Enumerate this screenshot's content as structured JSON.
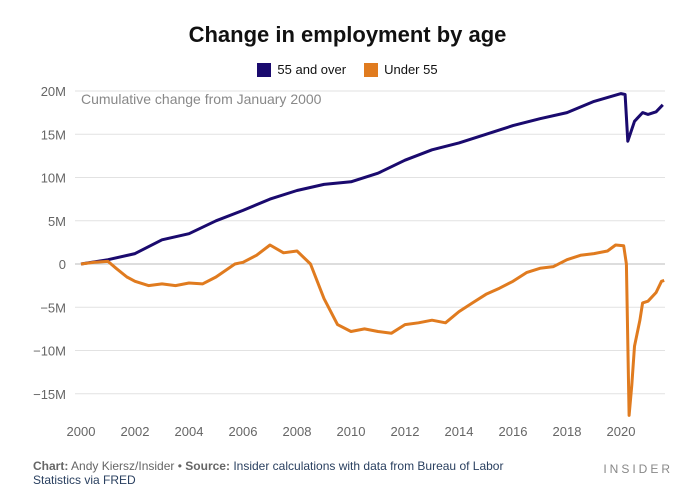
{
  "chart_data": {
    "type": "line",
    "title": "Change in employment by age",
    "annotation": "Cumulative change from January 2000",
    "ylim": [
      -17500000,
      21000000
    ],
    "xlim": [
      2000,
      2021.7
    ],
    "yticks": [
      {
        "v": 20,
        "label": "20M"
      },
      {
        "v": 15,
        "label": "15M"
      },
      {
        "v": 10,
        "label": "10M"
      },
      {
        "v": 5,
        "label": "5M"
      },
      {
        "v": 0,
        "label": "0"
      },
      {
        "v": -5,
        "label": "−5M"
      },
      {
        "v": -10,
        "label": "−10M"
      },
      {
        "v": -15,
        "label": "−15M"
      }
    ],
    "xticks": [
      2000,
      2002,
      2004,
      2006,
      2008,
      2010,
      2012,
      2014,
      2016,
      2018,
      2020
    ],
    "units": "millions",
    "series": [
      {
        "name": "55 and over",
        "color": "#1a0a6e",
        "x": [
          2000,
          2001,
          2002,
          2003,
          2004,
          2005,
          2006,
          2007,
          2008,
          2009,
          2010,
          2011,
          2012,
          2013,
          2014,
          2015,
          2016,
          2017,
          2018,
          2019,
          2020.0,
          2020.15,
          2020.25,
          2020.5,
          2020.8,
          2021.0,
          2021.3,
          2021.55
        ],
        "y": [
          0,
          0.5,
          1.2,
          2.8,
          3.5,
          5,
          6.2,
          7.5,
          8.5,
          9.2,
          9.5,
          10.5,
          12,
          13.2,
          14,
          15,
          16,
          16.8,
          17.5,
          18.8,
          19.7,
          19.6,
          14.2,
          16.5,
          17.5,
          17.3,
          17.6,
          18.4
        ]
      },
      {
        "name": "Under 55",
        "color": "#e07b1f",
        "x": [
          2000,
          2000.5,
          2001,
          2001.3,
          2001.7,
          2002,
          2002.5,
          2003,
          2003.5,
          2004,
          2004.5,
          2005,
          2005.7,
          2006,
          2006.5,
          2007,
          2007.5,
          2008,
          2008.5,
          2009,
          2009.5,
          2010,
          2010.5,
          2011,
          2011.5,
          2012,
          2012.5,
          2013,
          2013.5,
          2014,
          2014.5,
          2015,
          2015.5,
          2016,
          2016.5,
          2017,
          2017.5,
          2018,
          2018.5,
          2019,
          2019.5,
          2019.8,
          2020.1,
          2020.2,
          2020.3,
          2020.4,
          2020.5,
          2020.7,
          2020.8,
          2021.0,
          2021.3,
          2021.5,
          2021.6
        ],
        "y": [
          0,
          0.2,
          0.3,
          -0.5,
          -1.5,
          -2,
          -2.5,
          -2.3,
          -2.5,
          -2.2,
          -2.3,
          -1.5,
          0,
          0.2,
          1,
          2.2,
          1.3,
          1.5,
          0,
          -4,
          -7,
          -7.8,
          -7.5,
          -7.8,
          -8,
          -7,
          -6.8,
          -6.5,
          -6.8,
          -5.5,
          -4.5,
          -3.5,
          -2.8,
          -2,
          -1,
          -0.5,
          -0.3,
          0.5,
          1,
          1.2,
          1.5,
          2.2,
          2.1,
          0,
          -17.5,
          -14,
          -9.5,
          -6.5,
          -4.5,
          -4.3,
          -3.3,
          -2,
          -1.9
        ]
      }
    ]
  },
  "footer": {
    "chart_label": "Chart:",
    "chart_by": "Andy Kiersz/Insider",
    "bullet": "•",
    "source_label": "Source:",
    "source": "Insider calculations with data from Bureau of Labor Statistics via FRED"
  },
  "brand": "INSIDER"
}
